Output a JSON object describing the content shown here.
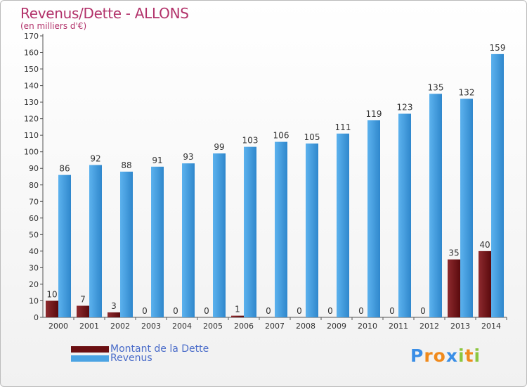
{
  "header": {
    "title": "Revenus/Dette - ALLONS",
    "subtitle": "(en milliers d'€)"
  },
  "chart_data": {
    "type": "bar",
    "categories": [
      "2000",
      "2001",
      "2002",
      "2003",
      "2004",
      "2005",
      "2006",
      "2007",
      "2008",
      "2009",
      "2010",
      "2011",
      "2012",
      "2013",
      "2014"
    ],
    "series": [
      {
        "name": "Montant de la Dette",
        "values": [
          10,
          7,
          3,
          0,
          0,
          0,
          1,
          0,
          0,
          0,
          0,
          0,
          0,
          35,
          40
        ],
        "color": "#6b0f12"
      },
      {
        "name": "Revenus",
        "values": [
          86,
          92,
          88,
          91,
          93,
          99,
          103,
          106,
          105,
          111,
          119,
          123,
          135,
          132,
          159
        ],
        "color": "#4ba3e3"
      }
    ],
    "ylim": [
      0,
      170
    ],
    "yticks": [
      0,
      10,
      20,
      30,
      40,
      50,
      60,
      70,
      80,
      90,
      100,
      110,
      120,
      130,
      140,
      150,
      160,
      170
    ],
    "grid": false,
    "legend_position": "bottom-left"
  },
  "legend": {
    "items": [
      {
        "label": "Montant de la Dette",
        "color": "#6b0f12"
      },
      {
        "label": "Revenus",
        "color": "#4ba3e3"
      }
    ]
  },
  "logo": {
    "letters": [
      "P",
      "r",
      "o",
      "x",
      "i",
      "t",
      "i"
    ],
    "colors": [
      "#3a8ee6",
      "#f08a1c",
      "#f08a1c",
      "#3a8ee6",
      "#8cc63f",
      "#f08a1c",
      "#8cc63f"
    ]
  }
}
